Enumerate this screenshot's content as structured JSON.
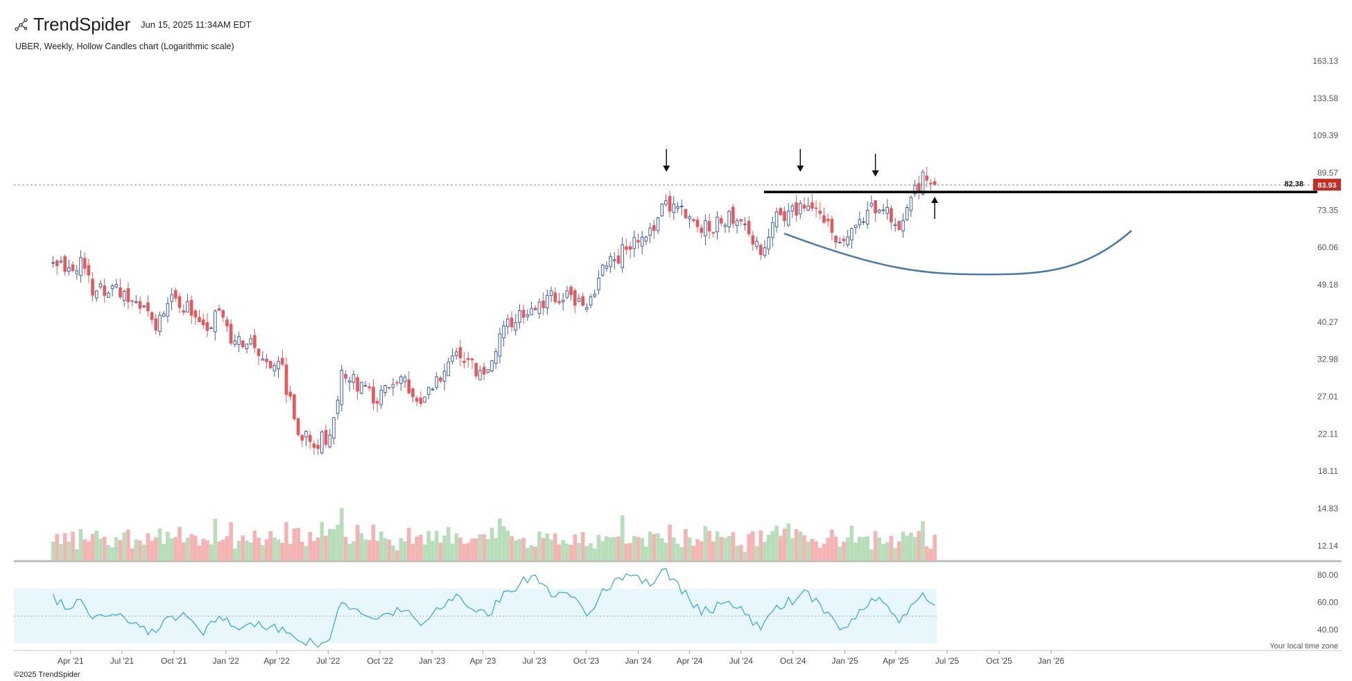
{
  "header": {
    "brand": "TrendSpider",
    "timestamp": "Jun 15, 2025 11:34AM EDT",
    "chart_title": "UBER, Weekly, Hollow Candles chart (Logarithmic scale)",
    "local_time_note": "Your local time zone",
    "copyright": "©2025 TrendSpider"
  },
  "colors": {
    "up": "#3d5fa8",
    "down": "#e8575a",
    "vol_up": "#b8deb9",
    "vol_down": "#f5b3b3",
    "rsi_line": "#3fa9df",
    "rsi_band": "#e8f7fb",
    "arc": "#4a78a6",
    "price_label_bg": "#c92a22"
  },
  "chart_data": {
    "type": "candlestick",
    "symbol": "UBER",
    "interval": "Weekly",
    "scale": "logarithmic",
    "price_axis_ticks": [
      "163.13",
      "133.58",
      "109.39",
      "89.57",
      "73.35",
      "60.06",
      "49.18",
      "40.27",
      "32.98",
      "27.01",
      "22.11",
      "18.11",
      "14.83",
      "12.14"
    ],
    "rsi_axis_ticks": [
      "80.00",
      "60.00",
      "40.00"
    ],
    "x_axis_labels": [
      "Apr '21",
      "Jul '21",
      "Oct '21",
      "Jan '22",
      "Apr '22",
      "Jul '22",
      "Oct '22",
      "Jan '23",
      "Apr '23",
      "Jul '23",
      "Oct '23",
      "Jan '24",
      "Apr '24",
      "Jul '24",
      "Oct '24",
      "Jan '25",
      "Apr '25",
      "Jul '25",
      "Oct '25",
      "Jan '26"
    ],
    "resistance_level": "82.38",
    "last_price": "83.93",
    "close_series": [
      [
        "2021-03-01",
        58
      ],
      [
        "2021-03-22",
        53
      ],
      [
        "2021-04-19",
        56
      ],
      [
        "2021-05-10",
        47
      ],
      [
        "2021-06-07",
        49
      ],
      [
        "2021-07-05",
        48
      ],
      [
        "2021-08-02",
        43
      ],
      [
        "2021-08-30",
        40
      ],
      [
        "2021-09-27",
        45
      ],
      [
        "2021-10-25",
        44
      ],
      [
        "2021-11-22",
        38
      ],
      [
        "2021-12-20",
        42
      ],
      [
        "2022-01-17",
        36
      ],
      [
        "2022-02-14",
        36
      ],
      [
        "2022-03-14",
        33
      ],
      [
        "2022-04-11",
        31
      ],
      [
        "2022-05-09",
        22
      ],
      [
        "2022-06-06",
        21
      ],
      [
        "2022-07-04",
        22
      ],
      [
        "2022-07-25",
        30
      ],
      [
        "2022-08-22",
        29
      ],
      [
        "2022-09-19",
        27
      ],
      [
        "2022-10-17",
        28
      ],
      [
        "2022-11-14",
        29
      ],
      [
        "2022-12-12",
        26
      ],
      [
        "2023-01-16",
        30
      ],
      [
        "2023-02-13",
        35
      ],
      [
        "2023-03-13",
        32
      ],
      [
        "2023-04-10",
        30
      ],
      [
        "2023-05-08",
        39
      ],
      [
        "2023-06-05",
        42
      ],
      [
        "2023-07-03",
        45
      ],
      [
        "2023-08-07",
        46
      ],
      [
        "2023-09-04",
        46
      ],
      [
        "2023-10-02",
        44
      ],
      [
        "2023-10-30",
        53
      ],
      [
        "2023-11-27",
        57
      ],
      [
        "2023-12-25",
        63
      ],
      [
        "2024-01-22",
        64
      ],
      [
        "2024-02-12",
        77
      ],
      [
        "2024-03-11",
        74
      ],
      [
        "2024-04-08",
        70
      ],
      [
        "2024-05-06",
        66
      ],
      [
        "2024-06-03",
        70
      ],
      [
        "2024-07-01",
        72
      ],
      [
        "2024-08-05",
        58
      ],
      [
        "2024-09-02",
        70
      ],
      [
        "2024-10-07",
        73
      ],
      [
        "2024-10-28",
        75
      ],
      [
        "2024-11-25",
        69
      ],
      [
        "2024-12-23",
        60
      ],
      [
        "2025-01-20",
        65
      ],
      [
        "2025-02-17",
        76
      ],
      [
        "2025-03-17",
        72
      ],
      [
        "2025-04-07",
        64
      ],
      [
        "2025-05-05",
        82
      ],
      [
        "2025-05-19",
        87
      ],
      [
        "2025-06-09",
        83.93
      ]
    ],
    "rsi_series": [
      [
        "2021-03-01",
        66
      ],
      [
        "2021-03-22",
        55
      ],
      [
        "2021-04-19",
        62
      ],
      [
        "2021-05-10",
        48
      ],
      [
        "2021-06-07",
        50
      ],
      [
        "2021-07-05",
        49
      ],
      [
        "2021-08-02",
        42
      ],
      [
        "2021-08-30",
        38
      ],
      [
        "2021-09-27",
        50
      ],
      [
        "2021-10-25",
        49
      ],
      [
        "2021-11-22",
        36
      ],
      [
        "2021-12-20",
        50
      ],
      [
        "2022-01-17",
        42
      ],
      [
        "2022-02-14",
        45
      ],
      [
        "2022-03-14",
        40
      ],
      [
        "2022-04-11",
        42
      ],
      [
        "2022-05-09",
        32
      ],
      [
        "2022-06-06",
        30
      ],
      [
        "2022-07-04",
        33
      ],
      [
        "2022-07-25",
        60
      ],
      [
        "2022-08-22",
        55
      ],
      [
        "2022-09-19",
        48
      ],
      [
        "2022-10-17",
        52
      ],
      [
        "2022-11-14",
        54
      ],
      [
        "2022-12-12",
        43
      ],
      [
        "2023-01-16",
        55
      ],
      [
        "2023-02-13",
        66
      ],
      [
        "2023-03-13",
        55
      ],
      [
        "2023-04-10",
        50
      ],
      [
        "2023-05-08",
        68
      ],
      [
        "2023-06-05",
        73
      ],
      [
        "2023-07-03",
        80
      ],
      [
        "2023-08-07",
        64
      ],
      [
        "2023-09-04",
        64
      ],
      [
        "2023-10-02",
        50
      ],
      [
        "2023-10-30",
        70
      ],
      [
        "2023-11-27",
        78
      ],
      [
        "2023-12-25",
        80
      ],
      [
        "2024-01-22",
        72
      ],
      [
        "2024-02-12",
        84
      ],
      [
        "2024-03-11",
        75
      ],
      [
        "2024-04-08",
        56
      ],
      [
        "2024-05-06",
        53
      ],
      [
        "2024-06-03",
        60
      ],
      [
        "2024-07-01",
        57
      ],
      [
        "2024-08-05",
        40
      ],
      [
        "2024-09-02",
        58
      ],
      [
        "2024-10-07",
        62
      ],
      [
        "2024-10-28",
        68
      ],
      [
        "2024-11-25",
        52
      ],
      [
        "2024-12-23",
        40
      ],
      [
        "2025-01-20",
        48
      ],
      [
        "2025-02-17",
        63
      ],
      [
        "2025-03-17",
        58
      ],
      [
        "2025-04-07",
        45
      ],
      [
        "2025-05-05",
        60
      ],
      [
        "2025-05-19",
        67
      ],
      [
        "2025-06-09",
        58
      ]
    ],
    "grid": false,
    "legend": "none"
  }
}
